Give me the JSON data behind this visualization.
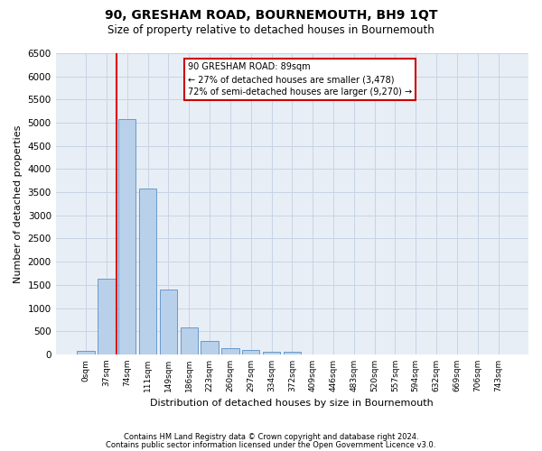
{
  "title": "90, GRESHAM ROAD, BOURNEMOUTH, BH9 1QT",
  "subtitle": "Size of property relative to detached houses in Bournemouth",
  "xlabel": "Distribution of detached houses by size in Bournemouth",
  "ylabel": "Number of detached properties",
  "footer_line1": "Contains HM Land Registry data © Crown copyright and database right 2024.",
  "footer_line2": "Contains public sector information licensed under the Open Government Licence v3.0.",
  "bar_labels": [
    "0sqm",
    "37sqm",
    "74sqm",
    "111sqm",
    "149sqm",
    "186sqm",
    "223sqm",
    "260sqm",
    "297sqm",
    "334sqm",
    "372sqm",
    "409sqm",
    "446sqm",
    "483sqm",
    "520sqm",
    "557sqm",
    "594sqm",
    "632sqm",
    "669sqm",
    "706sqm",
    "743sqm"
  ],
  "bar_values": [
    75,
    1625,
    5075,
    3575,
    1400,
    575,
    290,
    140,
    90,
    65,
    65,
    0,
    0,
    0,
    0,
    0,
    0,
    0,
    0,
    0,
    0
  ],
  "bar_color": "#b8d0ea",
  "bar_edge_color": "#5b8ec4",
  "grid_color": "#c8d4e4",
  "background_color": "#e8eef6",
  "vline_color": "#dd0000",
  "vline_x_index": 2,
  "annotation_text_line1": "90 GRESHAM ROAD: 89sqm",
  "annotation_text_line2": "← 27% of detached houses are smaller (3,478)",
  "annotation_text_line3": "72% of semi-detached houses are larger (9,270) →",
  "annotation_box_edgecolor": "#cc0000",
  "ylim_max": 6500,
  "ytick_step": 500,
  "figwidth": 6.0,
  "figheight": 5.0,
  "dpi": 100
}
